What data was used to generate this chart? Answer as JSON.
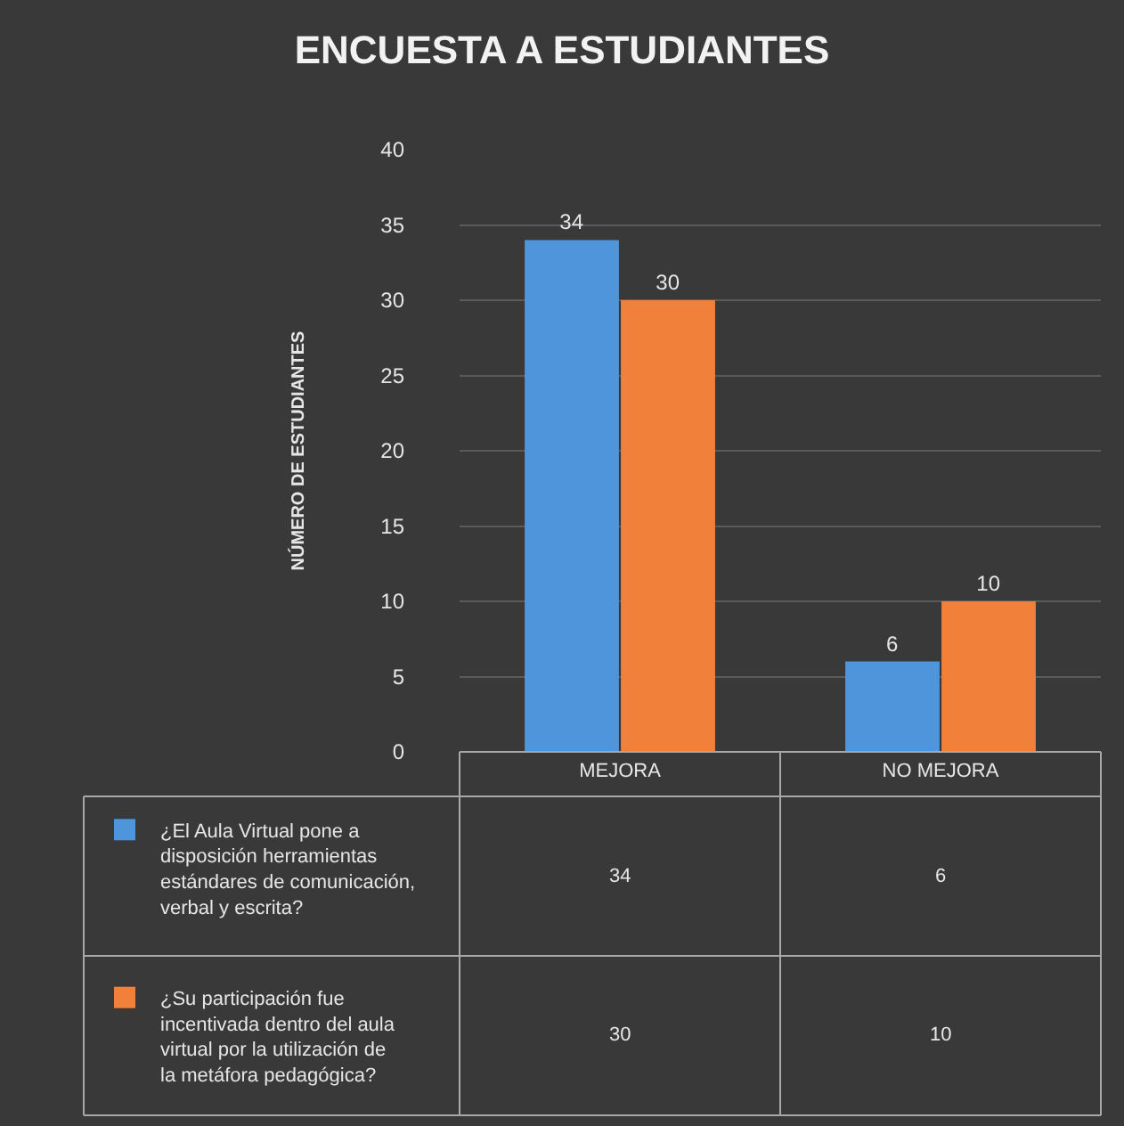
{
  "chart_data": {
    "type": "bar",
    "title": "ENCUESTA A ESTUDIANTES",
    "ylabel": "NÚMERO DE ESTUDIANTES",
    "categories": [
      "MEJORA",
      "NO MEJORA"
    ],
    "series": [
      {
        "name": "¿El Aula Virtual pone a disposición herramientas estándares de comunicación, verbal y escrita?",
        "color": "#4f95dc",
        "values": [
          34,
          6
        ],
        "value_labels": [
          "34",
          "6"
        ]
      },
      {
        "name": "¿Su participación fue incentivada dentro del aula virtual por la utilización de la metáfora pedagógica?",
        "color": "#f0803a",
        "values": [
          30,
          10
        ],
        "value_labels": [
          "30",
          "10"
        ]
      }
    ],
    "ylim": [
      0,
      40
    ],
    "yticks": [
      0,
      5,
      10,
      15,
      20,
      25,
      30,
      35,
      40
    ],
    "grid": "y",
    "legend": "bottom left",
    "annotations": [
      "34",
      "6",
      "30",
      "10"
    ]
  }
}
